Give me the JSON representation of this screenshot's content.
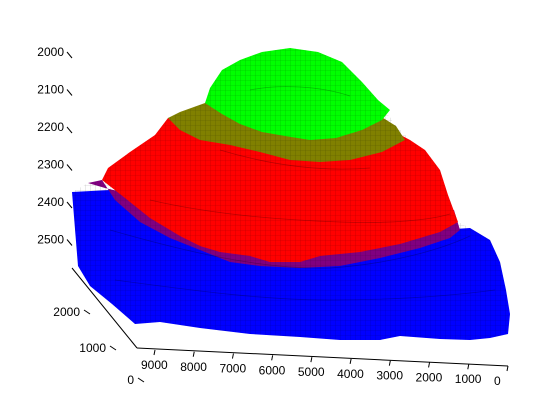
{
  "chart_data": {
    "type": "surface3d",
    "title": "",
    "xlabel": "",
    "ylabel": "",
    "zlabel": "",
    "x_ticks": [
      "9000",
      "8000",
      "7000",
      "6000",
      "5000",
      "4000",
      "3000",
      "2000",
      "1000",
      "0"
    ],
    "y_ticks": [
      "0",
      "1000",
      "2000"
    ],
    "z_ticks": [
      "2000",
      "2100",
      "2200",
      "2300",
      "2400",
      "2500"
    ],
    "z_axis_reversed": true,
    "layers": [
      {
        "color": "#00ff00",
        "z_range": [
          2000,
          2150
        ]
      },
      {
        "color": "#808000",
        "z_range": [
          2150,
          2220
        ]
      },
      {
        "color": "#ff0000",
        "z_range": [
          2220,
          2420
        ]
      },
      {
        "color": "#800080",
        "z_range": [
          2420,
          2460
        ]
      },
      {
        "color": "#0000ff",
        "z_range": [
          2460,
          2560
        ]
      }
    ],
    "grid": false,
    "legend": "none"
  }
}
